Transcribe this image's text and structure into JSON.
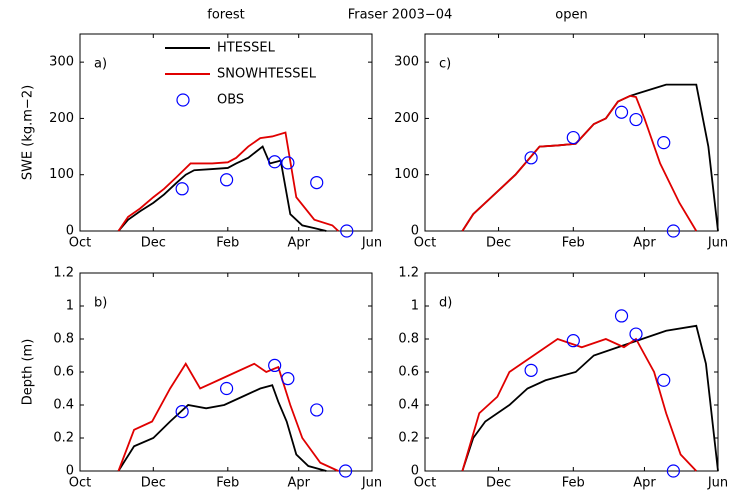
{
  "title": "Fraser 2003−04",
  "chart_data": [
    {
      "type": "line",
      "title": "forest",
      "label": "a)",
      "ylabel": "SWE (kg.m−2)",
      "legend": true,
      "xlim": [
        0,
        243
      ],
      "xticks": [
        {
          "value": 0,
          "label": "Oct"
        },
        {
          "value": 61,
          "label": "Dec"
        },
        {
          "value": 123,
          "label": "Feb"
        },
        {
          "value": 182,
          "label": "Apr"
        },
        {
          "value": 243,
          "label": "Jun"
        }
      ],
      "ylim": [
        0,
        350
      ],
      "yticks": [
        0,
        100,
        200,
        300
      ],
      "series": [
        {
          "name": "HTESSEL",
          "color": "#000000",
          "x": [
            32,
            40,
            50,
            61,
            70,
            80,
            88,
            95,
            110,
            123,
            130,
            140,
            152,
            158,
            167,
            175,
            185,
            195,
            205
          ],
          "values": [
            0,
            20,
            35,
            50,
            65,
            85,
            100,
            108,
            110,
            112,
            120,
            130,
            150,
            120,
            125,
            30,
            10,
            5,
            0
          ]
        },
        {
          "name": "SNOWHTESSEL",
          "color": "#e00000",
          "x": [
            32,
            40,
            50,
            61,
            70,
            80,
            92,
            110,
            123,
            130,
            140,
            150,
            160,
            171,
            180,
            195,
            210,
            215
          ],
          "values": [
            0,
            25,
            40,
            60,
            75,
            95,
            120,
            120,
            122,
            130,
            150,
            165,
            168,
            175,
            60,
            20,
            10,
            0
          ]
        },
        {
          "name": "OBS",
          "color": "#0000ff",
          "marker": "circle",
          "x": [
            85,
            122,
            162,
            173,
            197,
            222
          ],
          "values": [
            75,
            91,
            123,
            121,
            86,
            0
          ]
        }
      ]
    },
    {
      "type": "line",
      "label": "b)",
      "ylabel": "Depth (m)",
      "xlim": [
        0,
        243
      ],
      "xticks": [
        {
          "value": 0,
          "label": "Oct"
        },
        {
          "value": 61,
          "label": "Dec"
        },
        {
          "value": 123,
          "label": "Feb"
        },
        {
          "value": 182,
          "label": "Apr"
        },
        {
          "value": 243,
          "label": "Jun"
        }
      ],
      "ylim": [
        0,
        1.2
      ],
      "yticks": [
        0,
        0.2,
        0.4,
        0.6,
        0.8,
        1,
        1.2
      ],
      "series": [
        {
          "color": "#000000",
          "x": [
            32,
            45,
            61,
            75,
            90,
            105,
            120,
            135,
            150,
            160,
            165,
            172,
            180,
            190,
            205
          ],
          "values": [
            0,
            0.15,
            0.2,
            0.3,
            0.4,
            0.38,
            0.4,
            0.45,
            0.5,
            0.52,
            0.42,
            0.3,
            0.1,
            0.03,
            0
          ]
        },
        {
          "color": "#e00000",
          "x": [
            32,
            45,
            60,
            75,
            88,
            100,
            115,
            130,
            145,
            155,
            165,
            175,
            185,
            200,
            215
          ],
          "values": [
            0,
            0.25,
            0.3,
            0.5,
            0.65,
            0.5,
            0.55,
            0.6,
            0.65,
            0.6,
            0.63,
            0.4,
            0.2,
            0.05,
            0
          ]
        },
        {
          "color": "#0000ff",
          "marker": "circle",
          "x": [
            85,
            122,
            162,
            173,
            197,
            221
          ],
          "values": [
            0.36,
            0.5,
            0.64,
            0.56,
            0.37,
            0
          ]
        }
      ]
    },
    {
      "type": "line",
      "title": "open",
      "label": "c)",
      "xlim": [
        0,
        243
      ],
      "xticks": [
        {
          "value": 0,
          "label": "Oct"
        },
        {
          "value": 61,
          "label": "Dec"
        },
        {
          "value": 123,
          "label": "Feb"
        },
        {
          "value": 182,
          "label": "Apr"
        },
        {
          "value": 243,
          "label": "Jun"
        }
      ],
      "ylim": [
        0,
        350
      ],
      "yticks": [
        0,
        100,
        200,
        300
      ],
      "series": [
        {
          "color": "#000000",
          "x": [
            31,
            40,
            55,
            75,
            95,
            110,
            125,
            140,
            150,
            160,
            170,
            185,
            200,
            225,
            235,
            243
          ],
          "values": [
            0,
            30,
            60,
            100,
            150,
            152,
            155,
            190,
            200,
            230,
            240,
            250,
            260,
            260,
            150,
            0
          ]
        },
        {
          "color": "#e00000",
          "x": [
            31,
            40,
            55,
            75,
            95,
            110,
            125,
            140,
            150,
            160,
            170,
            175,
            182,
            195,
            211,
            225
          ],
          "values": [
            0,
            30,
            60,
            100,
            150,
            152,
            155,
            190,
            200,
            230,
            240,
            238,
            200,
            120,
            50,
            0
          ]
        },
        {
          "color": "#0000ff",
          "marker": "circle",
          "x": [
            88,
            123,
            163,
            175,
            198,
            206
          ],
          "values": [
            130,
            166,
            211,
            198,
            157,
            0
          ]
        }
      ]
    },
    {
      "type": "line",
      "label": "d)",
      "xlim": [
        0,
        243
      ],
      "xticks": [
        {
          "value": 0,
          "label": "Oct"
        },
        {
          "value": 61,
          "label": "Dec"
        },
        {
          "value": 123,
          "label": "Feb"
        },
        {
          "value": 182,
          "label": "Apr"
        },
        {
          "value": 243,
          "label": "Jun"
        }
      ],
      "ylim": [
        0,
        1.2
      ],
      "yticks": [
        0,
        0.2,
        0.4,
        0.6,
        0.8,
        1,
        1.2
      ],
      "series": [
        {
          "color": "#000000",
          "x": [
            31,
            40,
            50,
            70,
            85,
            100,
            125,
            140,
            160,
            180,
            200,
            225,
            233,
            243
          ],
          "values": [
            0,
            0.2,
            0.3,
            0.4,
            0.5,
            0.55,
            0.6,
            0.7,
            0.75,
            0.8,
            0.85,
            0.88,
            0.65,
            0
          ]
        },
        {
          "color": "#e00000",
          "x": [
            31,
            45,
            60,
            70,
            90,
            110,
            130,
            150,
            165,
            175,
            190,
            200,
            212,
            225
          ],
          "values": [
            0,
            0.35,
            0.45,
            0.6,
            0.7,
            0.8,
            0.75,
            0.8,
            0.75,
            0.8,
            0.6,
            0.35,
            0.1,
            0
          ]
        },
        {
          "color": "#0000ff",
          "marker": "circle",
          "x": [
            88,
            123,
            163,
            175,
            198,
            206
          ],
          "values": [
            0.61,
            0.79,
            0.94,
            0.83,
            0.55,
            0
          ]
        }
      ]
    }
  ]
}
